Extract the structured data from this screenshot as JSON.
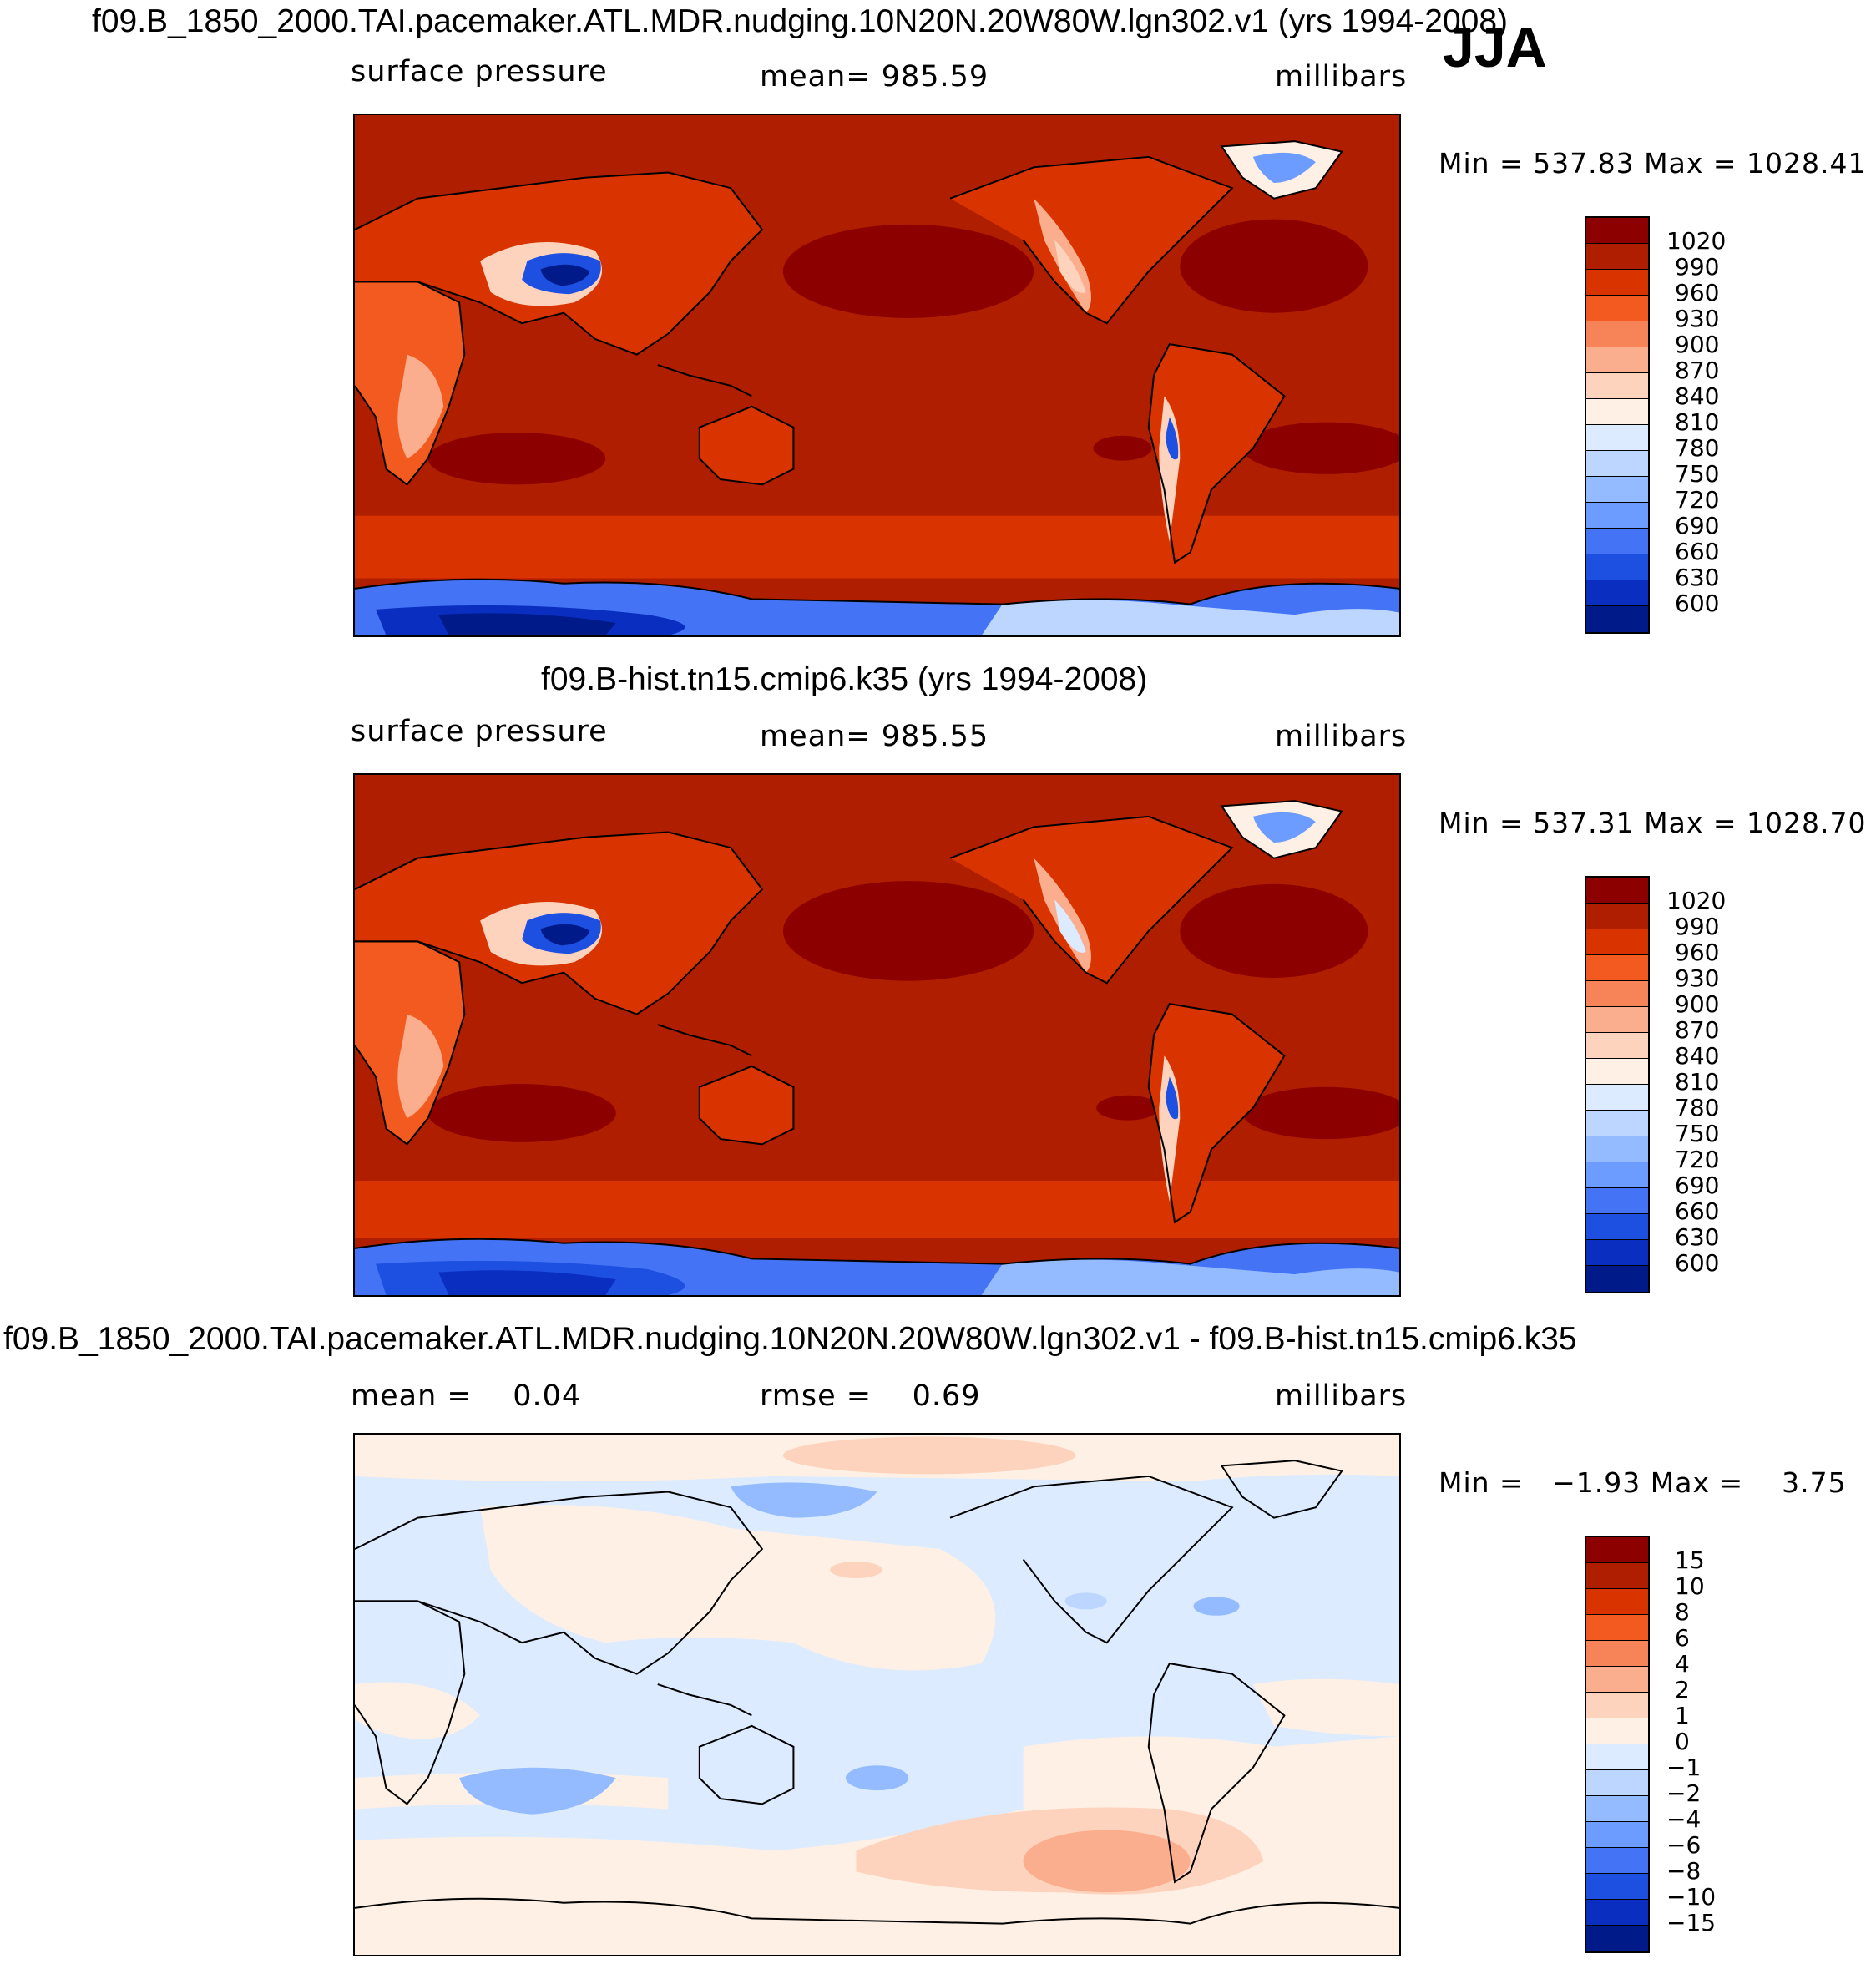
{
  "season": "JJA",
  "colors": {
    "warm": [
      "#8c0000",
      "#b01e00",
      "#d93300",
      "#f25a20",
      "#f78458",
      "#fbae8e",
      "#fdd3bd",
      "#fef0e4"
    ],
    "cool": [
      "#dcebff",
      "#bcd6ff",
      "#94bbff",
      "#6c9cff",
      "#4474f5",
      "#1d4fe0",
      "#0a2fc0",
      "#001a8a",
      "#000c66"
    ],
    "diff_warm": [
      "#8c0000",
      "#b01e00",
      "#d93300",
      "#f25a20",
      "#f78458",
      "#fbae8e",
      "#fdd3bd",
      "#fef0e4"
    ],
    "diff_cool": [
      "#dcebff",
      "#bcd6ff",
      "#94bbff",
      "#6c9cff",
      "#4474f5",
      "#1d4fe0",
      "#0a2fc0",
      "#001a8a"
    ]
  },
  "panels": [
    {
      "title": "f09.B_1850_2000.TAI.pacemaker.ATL.MDR.nudging.10N20N.20W80W.lgn302.v1 (yrs 1994-2008)",
      "left": "surface pressure",
      "center": "mean= 985.59",
      "right": "millibars",
      "minmax": "Min = 537.83 Max = 1028.41",
      "levels": [
        "1020",
        "990",
        "960",
        "930",
        "900",
        "870",
        "840",
        "810",
        "780",
        "750",
        "720",
        "690",
        "660",
        "630",
        "600"
      ]
    },
    {
      "title": "f09.B-hist.tn15.cmip6.k35 (yrs 1994-2008)",
      "left": "surface pressure",
      "center": "mean= 985.55",
      "right": "millibars",
      "minmax": "Min = 537.31 Max = 1028.70",
      "levels": [
        "1020",
        "990",
        "960",
        "930",
        "900",
        "870",
        "840",
        "810",
        "780",
        "750",
        "720",
        "690",
        "660",
        "630",
        "600"
      ]
    },
    {
      "title": "f09.B_1850_2000.TAI.pacemaker.ATL.MDR.nudging.10N20N.20W80W.lgn302.v1 - f09.B-hist.tn15.cmip6.k35",
      "left": "mean =    0.04",
      "center": "rmse =    0.69",
      "right": "millibars",
      "minmax": "Min =   −1.93 Max =    3.75",
      "levels": [
        "15",
        "10",
        "8",
        "6",
        "4",
        "2",
        "1",
        "0",
        "−1",
        "−2",
        "−4",
        "−6",
        "−8",
        "−10",
        "−15"
      ]
    }
  ]
}
